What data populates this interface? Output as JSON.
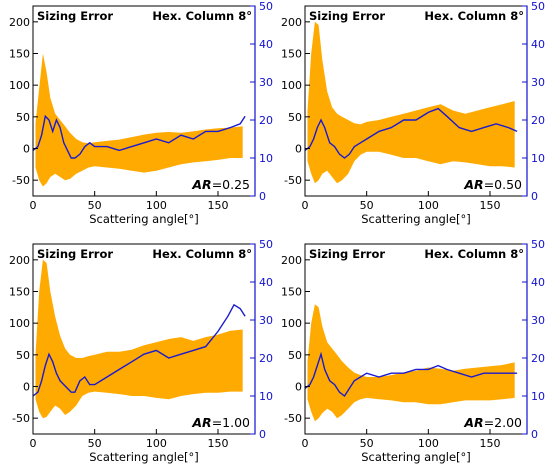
{
  "chart_data": [
    {
      "type": "area",
      "title": "Sizing Error",
      "subtitle": "Hex. Column 8°",
      "xlabel": "Scattering angle[°]",
      "xlim": [
        0,
        180
      ],
      "xticks": [
        0,
        50,
        100,
        150
      ],
      "ylim": [
        -75,
        225
      ],
      "yticks": [
        -50,
        0,
        50,
        100,
        150,
        200
      ],
      "y2lim": [
        0,
        50
      ],
      "y2ticks": [
        0,
        10,
        20,
        30,
        40,
        50
      ],
      "annotation_label": "AR",
      "annotation_value": "=0.25",
      "colors": {
        "band": "#ffaa00",
        "line": "#1a1ad0",
        "right_axis": "#1010d0"
      },
      "band_x": [
        2,
        5,
        8,
        11,
        14,
        18,
        22,
        26,
        30,
        35,
        40,
        45,
        50,
        60,
        70,
        80,
        90,
        100,
        110,
        120,
        130,
        140,
        150,
        160,
        170
      ],
      "band_upper": [
        40,
        95,
        150,
        120,
        80,
        55,
        45,
        35,
        25,
        15,
        10,
        8,
        10,
        12,
        14,
        18,
        22,
        25,
        26,
        25,
        27,
        30,
        32,
        33,
        35
      ],
      "band_lower": [
        -30,
        -50,
        -60,
        -55,
        -45,
        -40,
        -45,
        -50,
        -48,
        -40,
        -35,
        -30,
        -28,
        -30,
        -32,
        -35,
        -38,
        -35,
        -30,
        -25,
        -22,
        -20,
        -18,
        -15,
        -15
      ],
      "line_x": [
        0,
        4,
        7,
        10,
        13,
        16,
        19,
        22,
        25,
        28,
        31,
        34,
        38,
        42,
        46,
        50,
        60,
        70,
        80,
        90,
        100,
        110,
        120,
        130,
        140,
        150,
        160,
        168,
        172
      ],
      "line_y2": [
        12,
        13,
        16,
        21,
        20,
        17,
        20,
        18,
        14,
        12,
        10,
        10,
        11,
        13,
        14,
        13,
        13,
        12,
        13,
        14,
        15,
        14,
        16,
        15,
        17,
        17,
        18,
        19,
        21
      ]
    },
    {
      "type": "area",
      "title": "Sizing Error",
      "subtitle": "Hex. Column 8°",
      "xlabel": "Scattering angle[°]",
      "xlim": [
        0,
        180
      ],
      "xticks": [
        0,
        50,
        100,
        150
      ],
      "ylim": [
        -75,
        225
      ],
      "yticks": [
        -50,
        0,
        50,
        100,
        150,
        200
      ],
      "y2lim": [
        0,
        50
      ],
      "y2ticks": [
        0,
        10,
        20,
        30,
        40,
        50
      ],
      "annotation_label": "AR",
      "annotation_value": "=0.50",
      "colors": {
        "band": "#ffaa00",
        "line": "#1a1ad0",
        "right_axis": "#1010d0"
      },
      "band_x": [
        2,
        5,
        8,
        11,
        14,
        18,
        22,
        26,
        30,
        35,
        40,
        45,
        50,
        60,
        70,
        80,
        90,
        100,
        110,
        120,
        130,
        140,
        150,
        160,
        170
      ],
      "band_upper": [
        60,
        150,
        200,
        195,
        140,
        90,
        65,
        55,
        50,
        45,
        40,
        38,
        42,
        45,
        50,
        55,
        60,
        65,
        70,
        60,
        55,
        60,
        65,
        70,
        75
      ],
      "band_lower": [
        -20,
        -40,
        -55,
        -50,
        -40,
        -35,
        -45,
        -55,
        -50,
        -40,
        -20,
        -10,
        -5,
        -5,
        -10,
        -15,
        -15,
        -20,
        -25,
        -20,
        -22,
        -25,
        -28,
        -28,
        -30
      ],
      "line_x": [
        0,
        4,
        7,
        10,
        13,
        16,
        20,
        24,
        28,
        32,
        36,
        40,
        45,
        50,
        60,
        70,
        80,
        90,
        100,
        108,
        115,
        125,
        135,
        145,
        155,
        165,
        172
      ],
      "line_y2": [
        12,
        13,
        15,
        18,
        20,
        18,
        14,
        13,
        11,
        10,
        11,
        13,
        14,
        15,
        17,
        18,
        20,
        20,
        22,
        23,
        21,
        18,
        17,
        18,
        19,
        18,
        17
      ]
    },
    {
      "type": "area",
      "title": "Sizing Error",
      "subtitle": "Hex. Column 8°",
      "xlabel": "Scattering angle[°]",
      "xlim": [
        0,
        180
      ],
      "xticks": [
        0,
        50,
        100,
        150
      ],
      "ylim": [
        -75,
        225
      ],
      "yticks": [
        -50,
        0,
        50,
        100,
        150,
        200
      ],
      "y2lim": [
        0,
        50
      ],
      "y2ticks": [
        0,
        10,
        20,
        30,
        40,
        50
      ],
      "annotation_label": "AR",
      "annotation_value": "=1.00",
      "colors": {
        "band": "#ffaa00",
        "line": "#1a1ad0",
        "right_axis": "#1010d0"
      },
      "band_x": [
        2,
        5,
        8,
        11,
        14,
        18,
        22,
        26,
        30,
        35,
        40,
        45,
        50,
        60,
        70,
        80,
        90,
        100,
        110,
        120,
        130,
        140,
        150,
        160,
        170
      ],
      "band_upper": [
        50,
        150,
        200,
        195,
        150,
        110,
        80,
        60,
        50,
        45,
        45,
        48,
        50,
        55,
        55,
        58,
        65,
        70,
        75,
        78,
        72,
        78,
        82,
        88,
        90
      ],
      "band_lower": [
        -20,
        -40,
        -50,
        -48,
        -40,
        -30,
        -35,
        -45,
        -40,
        -30,
        -15,
        -10,
        -8,
        -10,
        -12,
        -15,
        -15,
        -18,
        -20,
        -15,
        -12,
        -10,
        -10,
        -8,
        -8
      ],
      "line_x": [
        0,
        4,
        7,
        10,
        13,
        16,
        19,
        22,
        25,
        28,
        31,
        34,
        38,
        42,
        46,
        50,
        60,
        70,
        80,
        90,
        100,
        110,
        120,
        130,
        140,
        150,
        158,
        163,
        168,
        172
      ],
      "line_y2": [
        10,
        11,
        14,
        18,
        21,
        19,
        16,
        14,
        13,
        12,
        11,
        11,
        14,
        15,
        13,
        13,
        15,
        17,
        19,
        21,
        22,
        20,
        21,
        22,
        23,
        27,
        31,
        34,
        33,
        31
      ]
    },
    {
      "type": "area",
      "title": "Sizing Error",
      "subtitle": "Hex. Column 8°",
      "xlabel": "Scattering angle[°]",
      "xlim": [
        0,
        180
      ],
      "xticks": [
        0,
        50,
        100,
        150
      ],
      "ylim": [
        -75,
        225
      ],
      "yticks": [
        -50,
        0,
        50,
        100,
        150,
        200
      ],
      "y2lim": [
        0,
        50
      ],
      "y2ticks": [
        0,
        10,
        20,
        30,
        40,
        50
      ],
      "annotation_label": "AR",
      "annotation_value": "=2.00",
      "colors": {
        "band": "#ffaa00",
        "line": "#1a1ad0",
        "right_axis": "#1010d0"
      },
      "band_x": [
        2,
        5,
        8,
        11,
        14,
        18,
        22,
        26,
        30,
        35,
        40,
        45,
        50,
        60,
        70,
        80,
        90,
        100,
        110,
        120,
        130,
        140,
        150,
        160,
        170
      ],
      "band_upper": [
        40,
        100,
        130,
        125,
        95,
        70,
        60,
        50,
        40,
        30,
        22,
        18,
        15,
        15,
        18,
        22,
        25,
        30,
        28,
        25,
        28,
        30,
        32,
        34,
        38
      ],
      "band_lower": [
        -20,
        -40,
        -55,
        -50,
        -42,
        -35,
        -40,
        -50,
        -45,
        -35,
        -25,
        -20,
        -18,
        -20,
        -22,
        -25,
        -25,
        -28,
        -28,
        -25,
        -22,
        -22,
        -22,
        -20,
        -18
      ],
      "line_x": [
        0,
        4,
        7,
        10,
        13,
        16,
        20,
        24,
        28,
        32,
        36,
        40,
        45,
        50,
        60,
        70,
        80,
        90,
        100,
        108,
        115,
        125,
        135,
        145,
        155,
        165,
        172
      ],
      "line_y2": [
        12,
        13,
        15,
        18,
        21,
        17,
        14,
        13,
        11,
        10,
        12,
        14,
        15,
        16,
        15,
        16,
        16,
        17,
        17,
        18,
        17,
        16,
        15,
        16,
        16,
        16,
        16
      ]
    }
  ]
}
